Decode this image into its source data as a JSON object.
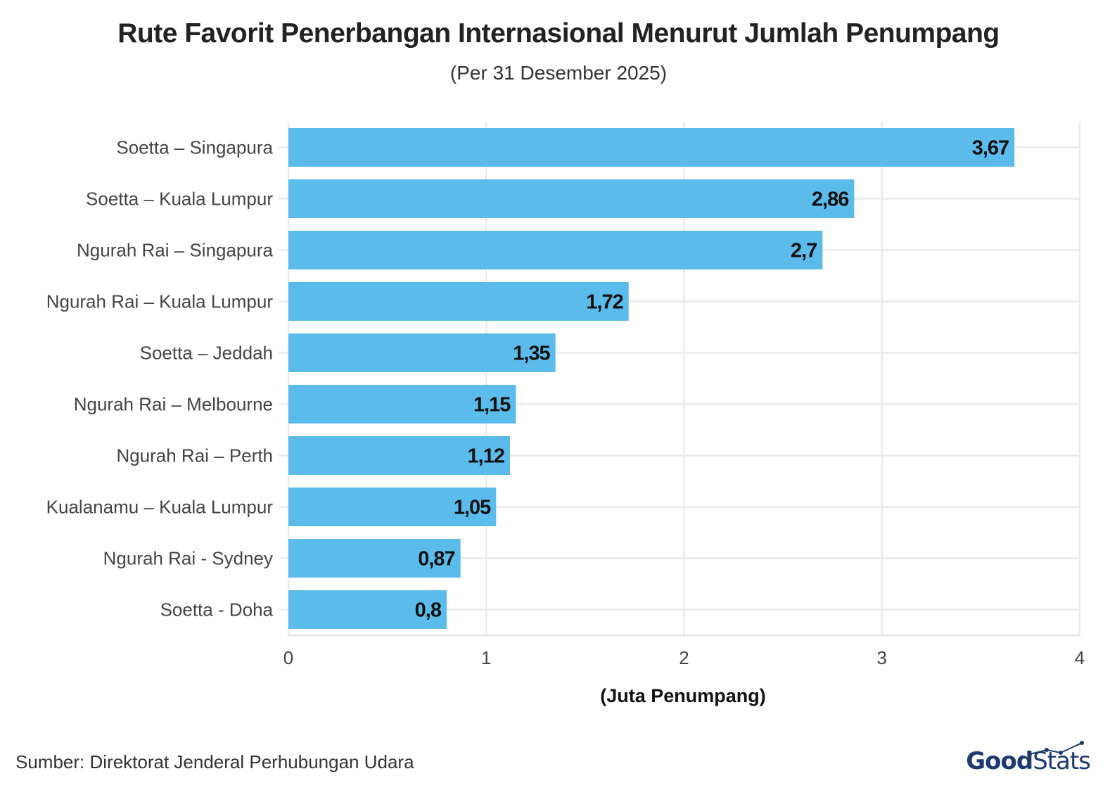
{
  "chart_data": {
    "type": "bar",
    "orientation": "horizontal",
    "title": "Rute Favorit Penerbangan Internasional Menurut Jumlah Penumpang",
    "subtitle": "(Per 31 Desember 2025)",
    "xlabel": "(Juta Penumpang)",
    "ylabel": "",
    "categories": [
      "Soetta – Singapura",
      "Soetta – Kuala Lumpur",
      "Ngurah Rai – Singapura",
      "Ngurah Rai – Kuala Lumpur",
      "Soetta – Jeddah",
      "Ngurah Rai – Melbourne",
      "Ngurah Rai – Perth",
      "Kualanamu – Kuala Lumpur",
      "Ngurah Rai - Sydney",
      "Soetta - Doha"
    ],
    "values": [
      3.67,
      2.86,
      2.7,
      1.72,
      1.35,
      1.15,
      1.12,
      1.05,
      0.87,
      0.8
    ],
    "value_labels": [
      "3,67",
      "2,86",
      "2,7",
      "1,72",
      "1,35",
      "1,15",
      "1,12",
      "1,05",
      "0,87",
      "0,8"
    ],
    "xlim": [
      0,
      4
    ],
    "xticks": [
      "0",
      "1",
      "2",
      "3",
      "4"
    ],
    "grid": true,
    "bar_color": "#5bbcec"
  },
  "source": "Sumber: Direktorat Jenderal Perhubungan Udara",
  "brand": {
    "part1": "Good",
    "part2": "Stats"
  }
}
